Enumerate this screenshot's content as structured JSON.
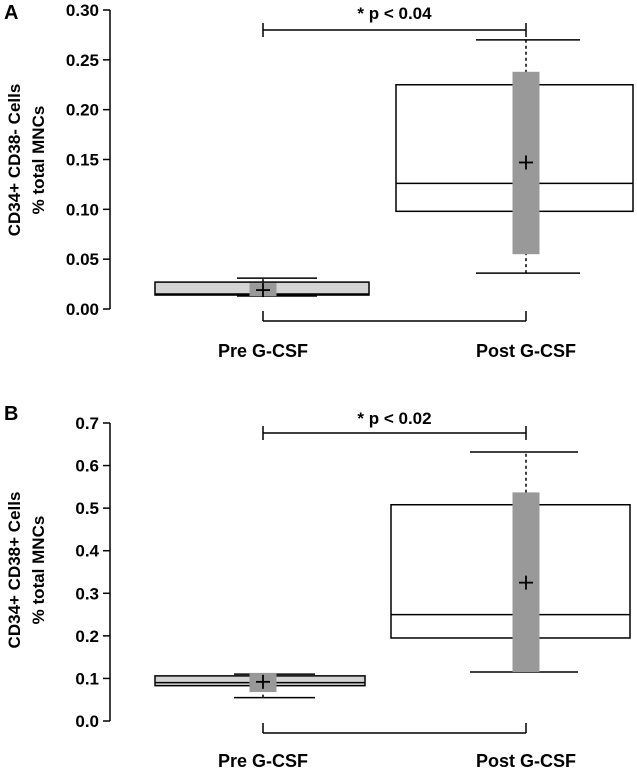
{
  "chart_data": [
    {
      "panel": "A",
      "type": "box",
      "ylabel_line1": "CD34+ CD38- Cells",
      "ylabel_line2": "% total MNCs",
      "ylim": [
        0,
        0.3
      ],
      "yticks": [
        {
          "value": 0.0,
          "label": "0.00"
        },
        {
          "value": 0.05,
          "label": "0.05"
        },
        {
          "value": 0.1,
          "label": "0.10"
        },
        {
          "value": 0.15,
          "label": "0.15"
        },
        {
          "value": 0.2,
          "label": "0.20"
        },
        {
          "value": 0.25,
          "label": "0.25"
        },
        {
          "value": 0.3,
          "label": "0.30"
        }
      ],
      "categories": [
        "Pre G-CSF",
        "Post G-CSF"
      ],
      "boxes": [
        {
          "whisker_low": 0.013,
          "q1": 0.014,
          "median": 0.015,
          "q3": 0.027,
          "whisker_high": 0.031,
          "mean": 0.019,
          "sd_low": 0.013,
          "sd_high": 0.026
        },
        {
          "whisker_low": 0.036,
          "q1": 0.098,
          "median": 0.126,
          "q3": 0.225,
          "whisker_high": 0.27,
          "mean": 0.147,
          "sd_low": 0.055,
          "sd_high": 0.238
        }
      ],
      "significance": "* p < 0.04",
      "box_fill_colors": [
        "#d4d4d4",
        "#ffffff"
      ],
      "sd_bar_color": "#999999"
    },
    {
      "panel": "B",
      "type": "box",
      "ylabel_line1": "CD34+ CD38+ Cells",
      "ylabel_line2": "% total MNCs",
      "ylim": [
        0,
        0.7
      ],
      "yticks": [
        {
          "value": 0.0,
          "label": "0.0"
        },
        {
          "value": 0.1,
          "label": "0.1"
        },
        {
          "value": 0.2,
          "label": "0.2"
        },
        {
          "value": 0.3,
          "label": "0.3"
        },
        {
          "value": 0.4,
          "label": "0.4"
        },
        {
          "value": 0.5,
          "label": "0.5"
        },
        {
          "value": 0.6,
          "label": "0.6"
        },
        {
          "value": 0.7,
          "label": "0.7"
        }
      ],
      "categories": [
        "Pre G-CSF",
        "Post G-CSF"
      ],
      "boxes": [
        {
          "whisker_low": 0.055,
          "q1": 0.083,
          "median": 0.09,
          "q3": 0.106,
          "whisker_high": 0.11,
          "mean": 0.092,
          "sd_low": 0.068,
          "sd_high": 0.113
        },
        {
          "whisker_low": 0.115,
          "q1": 0.195,
          "median": 0.25,
          "q3": 0.508,
          "whisker_high": 0.632,
          "mean": 0.325,
          "sd_low": 0.115,
          "sd_high": 0.537
        }
      ],
      "significance": "* p < 0.02",
      "box_fill_colors": [
        "#d4d4d4",
        "#ffffff"
      ],
      "sd_bar_color": "#999999"
    }
  ]
}
